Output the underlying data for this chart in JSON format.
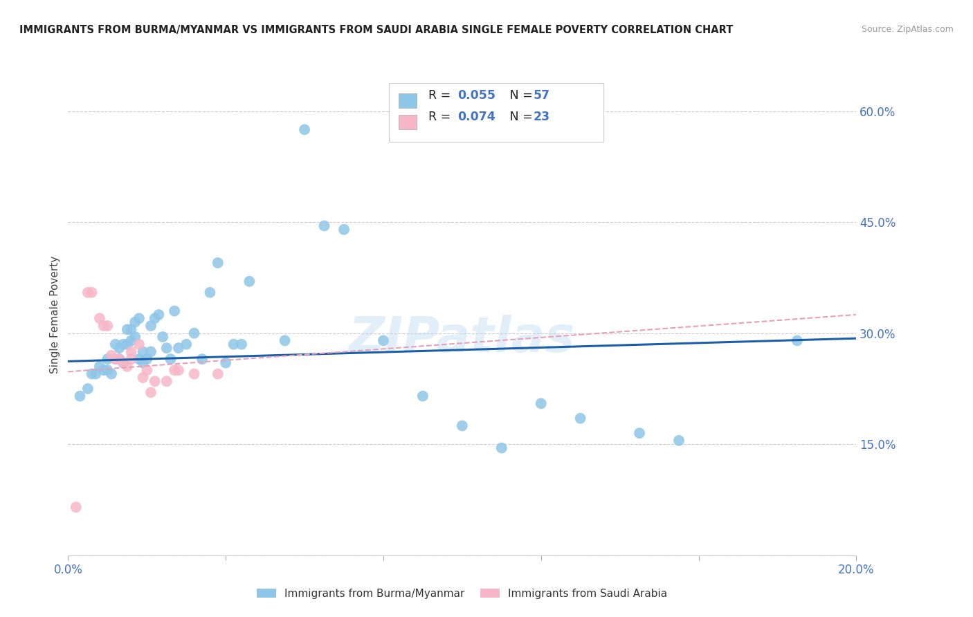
{
  "title": "IMMIGRANTS FROM BURMA/MYANMAR VS IMMIGRANTS FROM SAUDI ARABIA SINGLE FEMALE POVERTY CORRELATION CHART",
  "source": "Source: ZipAtlas.com",
  "ylabel": "Single Female Poverty",
  "xlim": [
    0.0,
    0.2
  ],
  "ylim": [
    0.0,
    0.65
  ],
  "x_tick_positions": [
    0.0,
    0.04,
    0.08,
    0.12,
    0.16,
    0.2
  ],
  "x_tick_labels": [
    "0.0%",
    "",
    "",
    "",
    "",
    "20.0%"
  ],
  "y_tick_positions": [
    0.0,
    0.15,
    0.3,
    0.45,
    0.6
  ],
  "y_tick_labels": [
    "",
    "15.0%",
    "30.0%",
    "45.0%",
    "60.0%"
  ],
  "legend_labels": [
    "Immigrants from Burma/Myanmar",
    "Immigrants from Saudi Arabia"
  ],
  "blue_color": "#8ec6e8",
  "pink_color": "#f7b6c8",
  "blue_line_color": "#1a5ea8",
  "pink_line_color": "#e8a0b8",
  "axis_tick_color": "#4472c4",
  "watermark": "ZIPatlas",
  "blue_scatter_x": [
    0.003,
    0.005,
    0.006,
    0.007,
    0.008,
    0.009,
    0.01,
    0.01,
    0.011,
    0.012,
    0.012,
    0.013,
    0.013,
    0.014,
    0.014,
    0.015,
    0.015,
    0.016,
    0.016,
    0.017,
    0.017,
    0.018,
    0.018,
    0.019,
    0.019,
    0.02,
    0.021,
    0.021,
    0.022,
    0.023,
    0.024,
    0.025,
    0.026,
    0.027,
    0.028,
    0.03,
    0.032,
    0.034,
    0.036,
    0.038,
    0.04,
    0.042,
    0.044,
    0.046,
    0.055,
    0.06,
    0.065,
    0.07,
    0.08,
    0.09,
    0.1,
    0.11,
    0.12,
    0.13,
    0.145,
    0.155,
    0.185
  ],
  "blue_scatter_y": [
    0.215,
    0.225,
    0.245,
    0.245,
    0.255,
    0.25,
    0.25,
    0.265,
    0.245,
    0.265,
    0.285,
    0.265,
    0.28,
    0.26,
    0.285,
    0.285,
    0.305,
    0.29,
    0.305,
    0.295,
    0.315,
    0.265,
    0.32,
    0.26,
    0.275,
    0.265,
    0.31,
    0.275,
    0.32,
    0.325,
    0.295,
    0.28,
    0.265,
    0.33,
    0.28,
    0.285,
    0.3,
    0.265,
    0.355,
    0.395,
    0.26,
    0.285,
    0.285,
    0.37,
    0.29,
    0.575,
    0.445,
    0.44,
    0.29,
    0.215,
    0.175,
    0.145,
    0.205,
    0.185,
    0.165,
    0.155,
    0.29
  ],
  "pink_scatter_x": [
    0.002,
    0.005,
    0.006,
    0.008,
    0.009,
    0.01,
    0.011,
    0.012,
    0.013,
    0.014,
    0.015,
    0.016,
    0.016,
    0.018,
    0.019,
    0.02,
    0.021,
    0.022,
    0.025,
    0.027,
    0.028,
    0.032,
    0.038
  ],
  "pink_scatter_y": [
    0.065,
    0.355,
    0.355,
    0.32,
    0.31,
    0.31,
    0.27,
    0.265,
    0.265,
    0.26,
    0.255,
    0.265,
    0.275,
    0.285,
    0.24,
    0.25,
    0.22,
    0.235,
    0.235,
    0.25,
    0.25,
    0.245,
    0.245
  ],
  "blue_trend_x": [
    0.0,
    0.2
  ],
  "blue_trend_y": [
    0.262,
    0.293
  ],
  "pink_trend_x": [
    0.0,
    0.2
  ],
  "pink_trend_y": [
    0.248,
    0.325
  ]
}
